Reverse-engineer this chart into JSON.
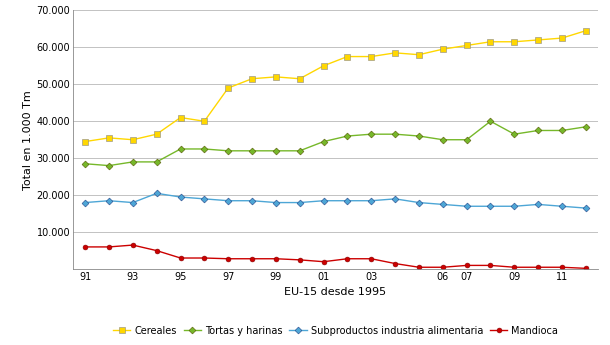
{
  "xlabel": "EU-15 desde 1995",
  "ylabel": "Total en 1.000 Tm",
  "cereales": [
    34500,
    35500,
    35000,
    36500,
    41000,
    40000,
    49000,
    51500,
    52000,
    51500,
    55000,
    57500,
    57500,
    58500,
    58000,
    59500,
    60500,
    61500,
    61500,
    62000,
    62500,
    64500
  ],
  "tortas_harinas": [
    28500,
    28000,
    29000,
    29000,
    32500,
    32500,
    32000,
    32000,
    32000,
    32000,
    34500,
    36000,
    36500,
    36500,
    36000,
    35000,
    35000,
    40000,
    36500,
    37500,
    37500,
    38500
  ],
  "subproductos": [
    18000,
    18500,
    18000,
    20500,
    19500,
    19000,
    18500,
    18500,
    18000,
    18000,
    18500,
    18500,
    18500,
    19000,
    18000,
    17500,
    17000,
    17000,
    17000,
    17500,
    17000,
    16500
  ],
  "mandioca": [
    6000,
    6000,
    6500,
    5000,
    3000,
    3000,
    2800,
    2800,
    2800,
    2500,
    2000,
    2800,
    2800,
    1500,
    500,
    500,
    1000,
    1000,
    500,
    500,
    500,
    200
  ],
  "x_data": [
    91,
    92,
    93,
    94,
    95,
    96,
    97,
    98,
    99,
    100,
    101,
    102,
    103,
    104,
    105,
    106,
    107,
    108,
    109,
    110,
    111,
    112
  ],
  "xtick_positions": [
    91,
    93,
    95,
    97,
    99,
    101,
    103,
    106,
    107,
    109,
    111
  ],
  "xtick_labels": [
    "91",
    "93",
    "95",
    "97",
    "99",
    "01",
    "03",
    "06",
    "07",
    "09",
    "11"
  ],
  "cereales_color": "#FFD700",
  "tortas_color": "#76B82A",
  "subproductos_color": "#4DA6D6",
  "mandioca_color": "#CC0000",
  "gridline_color": "#AAAAAA",
  "ylim": [
    0,
    70000
  ],
  "yticks": [
    0,
    10000,
    20000,
    30000,
    40000,
    50000,
    60000,
    70000
  ],
  "ytick_labels": [
    "",
    "10.000",
    "20.000",
    "30.000",
    "40.000",
    "50.000",
    "60.000",
    "70.000"
  ],
  "legend_labels": [
    "Cereales",
    "Tortas y harinas",
    "Subproductos industria alimentaria",
    "Mandioca"
  ],
  "xlim_left": 90.5,
  "xlim_right": 112.5
}
